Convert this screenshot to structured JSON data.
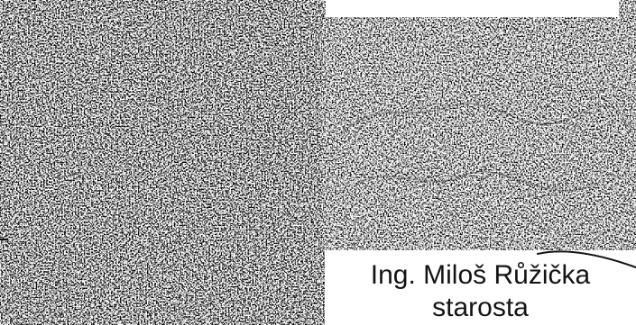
{
  "document": {
    "signatory_name": "Ing. Miloš Růžička",
    "signatory_title": "starosta"
  },
  "colors": {
    "paper": "#ffffff",
    "ink": "#141414"
  }
}
